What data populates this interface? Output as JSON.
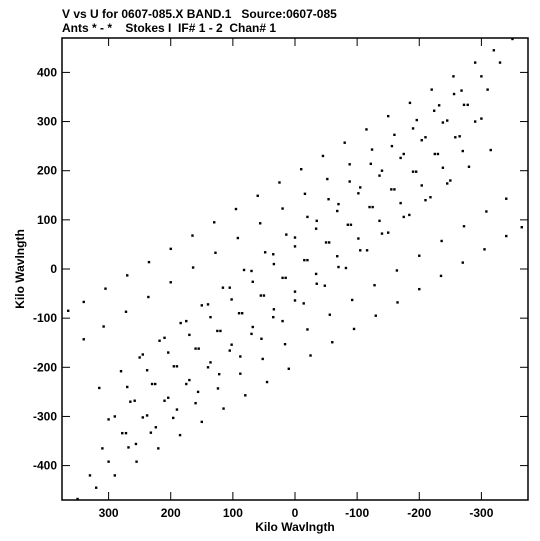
{
  "header": {
    "title": "V vs U for 0607-085.X BAND.1   Source:0607-085",
    "subtitle": "Ants * - *    Stokes I  IF# 1 - 2  Chan# 1"
  },
  "chart_data": {
    "type": "scatter",
    "title": "V vs U for 0607-085.X BAND.1   Source:0607-085",
    "subtitle": "Ants * - *    Stokes I  IF# 1 - 2  Chan# 1",
    "xlabel": "Kilo Wavlngth",
    "ylabel": "Kilo Wavlngth",
    "xlim": [
      375,
      -375
    ],
    "ylim": [
      -470,
      470
    ],
    "x_reversed": true,
    "grid": false,
    "legend": "none",
    "marker_color": "#000000",
    "xticks": [
      {
        "value": 300,
        "label": "300"
      },
      {
        "value": 200,
        "label": "200"
      },
      {
        "value": 100,
        "label": "100"
      },
      {
        "value": 0,
        "label": "0"
      },
      {
        "value": -100,
        "label": "-100"
      },
      {
        "value": -200,
        "label": "-200"
      },
      {
        "value": -300,
        "label": "-300"
      }
    ],
    "yticks": [
      {
        "value": 400,
        "label": "400"
      },
      {
        "value": 300,
        "label": "300"
      },
      {
        "value": 200,
        "label": "200"
      },
      {
        "value": 100,
        "label": "100"
      },
      {
        "value": 0,
        "label": "0"
      },
      {
        "value": -100,
        "label": "-100"
      },
      {
        "value": -200,
        "label": "-200"
      },
      {
        "value": -300,
        "label": "-300"
      },
      {
        "value": -400,
        "label": "-400"
      }
    ],
    "series": [
      {
        "values_x": [
          350,
          320,
          290,
          255,
          220,
          185,
          150,
          115,
          80,
          45,
          10,
          -25,
          -60,
          -95,
          -130,
          -165,
          -200,
          -235,
          -270,
          -305,
          -340,
          -365,
          330,
          300,
          268,
          232,
          196,
          160,
          124,
          88,
          52,
          16,
          -20,
          -56,
          -92,
          -128,
          -164,
          -200,
          -236,
          -272,
          -308,
          -340,
          310,
          278,
          245,
          210,
          175,
          140,
          105,
          70,
          35,
          0,
          -35,
          -70,
          -105,
          -140,
          -175,
          -210,
          -245,
          -280,
          -315,
          290,
          258,
          225,
          190,
          155,
          120,
          85,
          50,
          15,
          -20,
          -55,
          -90,
          -125,
          -160,
          -195,
          -230,
          -265,
          -300,
          270,
          238,
          204,
          170,
          136,
          102,
          68,
          34,
          0,
          -34,
          -68,
          -102,
          -136,
          -170,
          -204,
          -238,
          -272,
          250,
          218,
          184,
          150,
          116,
          82,
          48,
          14,
          -20,
          -54,
          -88,
          -122,
          -156,
          -190,
          -224,
          -256
        ],
        "values_y": [
          -468,
          -445,
          -420,
          -392,
          -365,
          -338,
          -311,
          -284,
          -257,
          -230,
          -203,
          -176,
          -149,
          -122,
          -95,
          -68,
          -41,
          -14,
          13,
          40,
          67,
          85,
          -420,
          -392,
          -363,
          -333,
          -303,
          -273,
          -243,
          -213,
          -183,
          -153,
          -123,
          -93,
          -63,
          -33,
          -3,
          27,
          57,
          87,
          117,
          143,
          -365,
          -334,
          -302,
          -268,
          -234,
          -200,
          -166,
          -132,
          -98,
          -64,
          -30,
          4,
          38,
          72,
          106,
          140,
          174,
          208,
          242,
          -300,
          -268,
          -234,
          -198,
          -162,
          -126,
          -90,
          -54,
          -18,
          18,
          54,
          90,
          126,
          162,
          198,
          234,
          270,
          306,
          -240,
          -206,
          -170,
          -134,
          -98,
          -62,
          -26,
          10,
          46,
          82,
          118,
          154,
          190,
          226,
          262,
          298,
          334,
          -180,
          -146,
          -110,
          -74,
          -38,
          -2,
          34,
          70,
          106,
          142,
          178,
          214,
          250,
          286,
          322,
          356
        ],
        "name": ""
      }
    ]
  }
}
